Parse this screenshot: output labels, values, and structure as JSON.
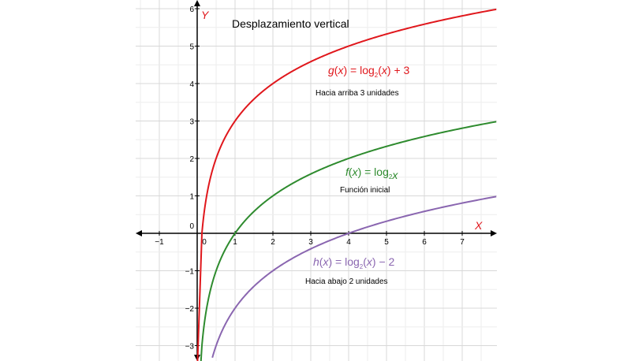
{
  "chart_data": {
    "type": "line",
    "title": "Desplazamiento vertical",
    "xlabel": "X",
    "ylabel": "Y",
    "xlim": [
      -1.6,
      7.9
    ],
    "ylim": [
      -3.3,
      6.1
    ],
    "grid": true,
    "x_ticks": [
      "−1",
      "0",
      "1",
      "2",
      "3",
      "4",
      "5",
      "6",
      "7"
    ],
    "y_ticks": [
      "−3",
      "−2",
      "−1",
      "0",
      "1",
      "2",
      "3",
      "4",
      "5",
      "6"
    ],
    "axis_color": "#000000",
    "series": [
      {
        "id": "g",
        "color": "#e0171c",
        "shift": 3,
        "formula_parts": [
          "g",
          "(",
          "x",
          ") = log",
          "2",
          "(",
          "x",
          ") + 3"
        ],
        "note": "Hacia arriba 3 unidades",
        "x": [
          0.125,
          0.25,
          0.5,
          1,
          2,
          4,
          7.9
        ],
        "y": [
          0,
          1,
          2,
          3,
          4,
          5,
          5.98
        ]
      },
      {
        "id": "f",
        "color": "#2e8b2e",
        "shift": 0,
        "formula_parts": [
          "f",
          "(",
          "x",
          ") = log",
          "2",
          "",
          "x",
          ""
        ],
        "note": "Función inicial",
        "x": [
          0.125,
          0.25,
          0.5,
          1,
          2,
          4,
          7.9
        ],
        "y": [
          -3,
          -2,
          -1,
          0,
          1,
          2,
          2.98
        ]
      },
      {
        "id": "h",
        "color": "#8a66b0",
        "shift": -2,
        "formula_parts": [
          "h",
          "(",
          "x",
          ") = log",
          "2",
          "(",
          "x",
          ") − 2"
        ],
        "note": "Hacia abajo 2 unidades",
        "x": [
          0.4,
          0.5,
          1,
          2,
          4,
          7.9
        ],
        "y": [
          -3.32,
          -3,
          -2,
          -1,
          0,
          0.98
        ]
      }
    ]
  }
}
